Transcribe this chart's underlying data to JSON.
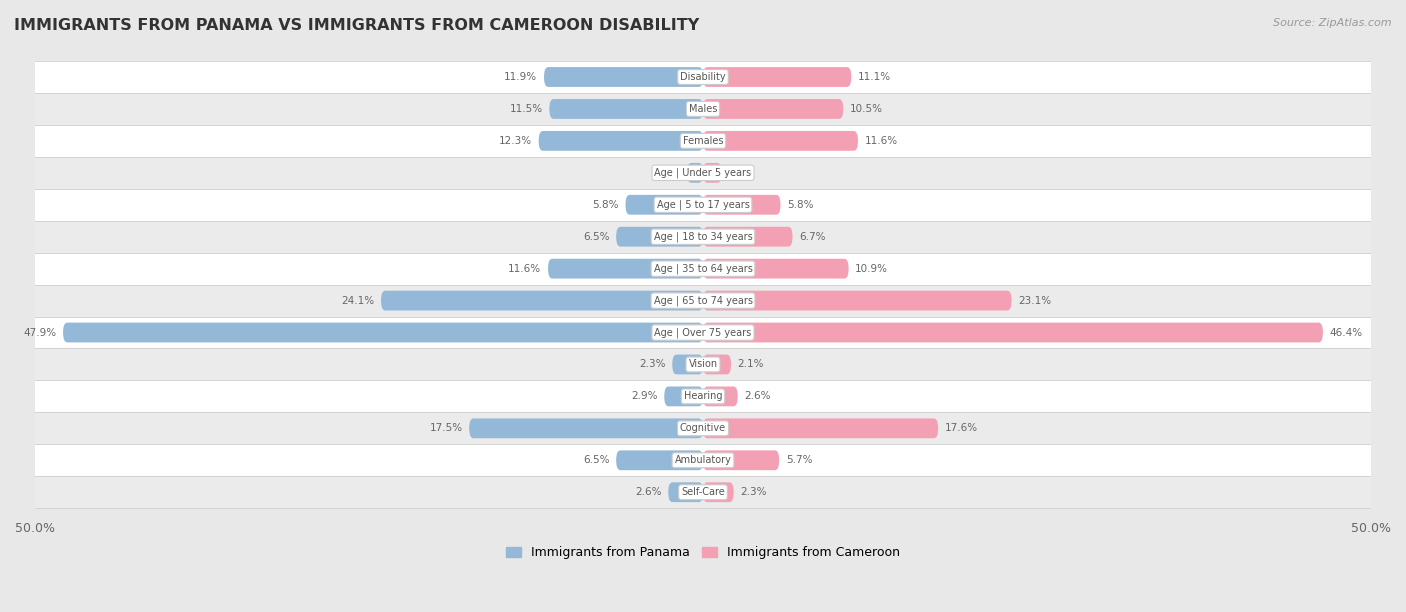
{
  "title": "IMMIGRANTS FROM PANAMA VS IMMIGRANTS FROM CAMEROON DISABILITY",
  "source": "Source: ZipAtlas.com",
  "categories": [
    "Disability",
    "Males",
    "Females",
    "Age | Under 5 years",
    "Age | 5 to 17 years",
    "Age | 18 to 34 years",
    "Age | 35 to 64 years",
    "Age | 65 to 74 years",
    "Age | Over 75 years",
    "Vision",
    "Hearing",
    "Cognitive",
    "Ambulatory",
    "Self-Care"
  ],
  "panama_values": [
    11.9,
    11.5,
    12.3,
    1.2,
    5.8,
    6.5,
    11.6,
    24.1,
    47.9,
    2.3,
    2.9,
    17.5,
    6.5,
    2.6
  ],
  "cameroon_values": [
    11.1,
    10.5,
    11.6,
    1.4,
    5.8,
    6.7,
    10.9,
    23.1,
    46.4,
    2.1,
    2.6,
    17.6,
    5.7,
    2.3
  ],
  "panama_color": "#94b8d8",
  "cameroon_color": "#f4a0b4",
  "axis_limit": 50.0,
  "background_color": "#e8e8e8",
  "row_bg_white": "#ffffff",
  "row_bg_gray": "#ebebeb",
  "legend_panama": "Immigrants from Panama",
  "legend_cameroon": "Immigrants from Cameroon"
}
